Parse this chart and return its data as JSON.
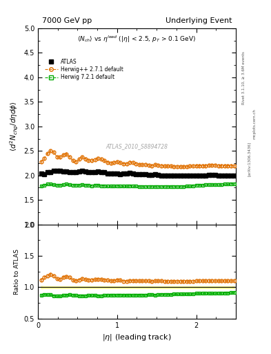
{
  "title_left": "7000 GeV pp",
  "title_right": "Underlying Event",
  "ylabel_main": "\\langle d^2 N_{chg}/d\\eta d\\phi \\rangle",
  "ylabel_ratio": "Ratio to ATLAS",
  "xlabel": "|\\eta| (leading track)",
  "watermark": "ATLAS_2010_S8894728",
  "xlim": [
    0,
    2.5
  ],
  "ylim_main": [
    1.0,
    5.0
  ],
  "ylim_ratio": [
    0.5,
    2.0
  ],
  "atlas_x": [
    0.04,
    0.08,
    0.12,
    0.16,
    0.2,
    0.24,
    0.28,
    0.32,
    0.36,
    0.4,
    0.44,
    0.48,
    0.52,
    0.56,
    0.6,
    0.64,
    0.68,
    0.72,
    0.76,
    0.8,
    0.84,
    0.88,
    0.92,
    0.96,
    1.0,
    1.04,
    1.08,
    1.12,
    1.16,
    1.2,
    1.24,
    1.28,
    1.32,
    1.36,
    1.4,
    1.44,
    1.48,
    1.52,
    1.56,
    1.6,
    1.64,
    1.68,
    1.72,
    1.76,
    1.8,
    1.84,
    1.88,
    1.92,
    1.96,
    2.0,
    2.04,
    2.08,
    2.12,
    2.16,
    2.2,
    2.24,
    2.28,
    2.32,
    2.36,
    2.4,
    2.44,
    2.48
  ],
  "atlas_y": [
    2.04,
    2.03,
    2.07,
    2.07,
    2.09,
    2.1,
    2.1,
    2.08,
    2.08,
    2.06,
    2.06,
    2.07,
    2.08,
    2.09,
    2.08,
    2.07,
    2.06,
    2.07,
    2.08,
    2.07,
    2.06,
    2.04,
    2.04,
    2.04,
    2.04,
    2.03,
    2.04,
    2.04,
    2.05,
    2.04,
    2.03,
    2.02,
    2.02,
    2.02,
    2.01,
    2.01,
    2.02,
    2.01,
    2.0,
    2.0,
    2.0,
    2.0,
    1.99,
    1.99,
    1.99,
    1.99,
    1.99,
    2.0,
    2.0,
    2.0,
    2.0,
    2.0,
    2.0,
    2.01,
    2.01,
    2.01,
    2.0,
    2.0,
    2.0,
    2.0,
    2.0,
    1.99
  ],
  "atlas_yerr": [
    0.04,
    0.03,
    0.03,
    0.03,
    0.03,
    0.03,
    0.03,
    0.03,
    0.03,
    0.03,
    0.03,
    0.03,
    0.03,
    0.03,
    0.03,
    0.03,
    0.03,
    0.03,
    0.03,
    0.03,
    0.03,
    0.03,
    0.03,
    0.03,
    0.03,
    0.03,
    0.03,
    0.03,
    0.03,
    0.03,
    0.03,
    0.03,
    0.03,
    0.03,
    0.03,
    0.03,
    0.03,
    0.03,
    0.03,
    0.03,
    0.03,
    0.03,
    0.03,
    0.03,
    0.03,
    0.03,
    0.03,
    0.03,
    0.03,
    0.03,
    0.03,
    0.03,
    0.03,
    0.03,
    0.03,
    0.03,
    0.03,
    0.03,
    0.03,
    0.03,
    0.03,
    0.03
  ],
  "herwig_x": [
    0.04,
    0.08,
    0.12,
    0.16,
    0.2,
    0.24,
    0.28,
    0.32,
    0.36,
    0.4,
    0.44,
    0.48,
    0.52,
    0.56,
    0.6,
    0.64,
    0.68,
    0.72,
    0.76,
    0.8,
    0.84,
    0.88,
    0.92,
    0.96,
    1.0,
    1.04,
    1.08,
    1.12,
    1.16,
    1.2,
    1.24,
    1.28,
    1.32,
    1.36,
    1.4,
    1.44,
    1.48,
    1.52,
    1.56,
    1.6,
    1.64,
    1.68,
    1.72,
    1.76,
    1.8,
    1.84,
    1.88,
    1.92,
    1.96,
    2.0,
    2.04,
    2.08,
    2.12,
    2.16,
    2.2,
    2.24,
    2.28,
    2.32,
    2.36,
    2.4,
    2.44,
    2.48
  ],
  "herwig_y": [
    2.28,
    2.35,
    2.45,
    2.5,
    2.47,
    2.38,
    2.37,
    2.42,
    2.44,
    2.38,
    2.3,
    2.28,
    2.33,
    2.38,
    2.34,
    2.31,
    2.3,
    2.32,
    2.35,
    2.33,
    2.3,
    2.27,
    2.25,
    2.26,
    2.28,
    2.26,
    2.24,
    2.24,
    2.27,
    2.26,
    2.24,
    2.22,
    2.22,
    2.22,
    2.21,
    2.2,
    2.22,
    2.21,
    2.2,
    2.19,
    2.19,
    2.19,
    2.18,
    2.18,
    2.18,
    2.18,
    2.18,
    2.19,
    2.19,
    2.2,
    2.2,
    2.2,
    2.2,
    2.21,
    2.21,
    2.21,
    2.2,
    2.2,
    2.2,
    2.2,
    2.2,
    2.19
  ],
  "herwig_yerr": [
    0.03,
    0.03,
    0.03,
    0.03,
    0.03,
    0.03,
    0.03,
    0.03,
    0.03,
    0.03,
    0.03,
    0.03,
    0.03,
    0.03,
    0.03,
    0.03,
    0.03,
    0.03,
    0.03,
    0.03,
    0.03,
    0.03,
    0.03,
    0.03,
    0.03,
    0.03,
    0.03,
    0.03,
    0.03,
    0.03,
    0.03,
    0.03,
    0.03,
    0.03,
    0.03,
    0.03,
    0.03,
    0.03,
    0.03,
    0.03,
    0.03,
    0.03,
    0.03,
    0.03,
    0.03,
    0.03,
    0.03,
    0.03,
    0.03,
    0.03,
    0.03,
    0.03,
    0.03,
    0.03,
    0.03,
    0.03,
    0.03,
    0.03,
    0.03,
    0.03,
    0.03,
    0.03
  ],
  "herwig7_x": [
    0.04,
    0.08,
    0.12,
    0.16,
    0.2,
    0.24,
    0.28,
    0.32,
    0.36,
    0.4,
    0.44,
    0.48,
    0.52,
    0.56,
    0.6,
    0.64,
    0.68,
    0.72,
    0.76,
    0.8,
    0.84,
    0.88,
    0.92,
    0.96,
    1.0,
    1.04,
    1.08,
    1.12,
    1.16,
    1.2,
    1.24,
    1.28,
    1.32,
    1.36,
    1.4,
    1.44,
    1.48,
    1.52,
    1.56,
    1.6,
    1.64,
    1.68,
    1.72,
    1.76,
    1.8,
    1.84,
    1.88,
    1.92,
    1.96,
    2.0,
    2.04,
    2.08,
    2.12,
    2.16,
    2.2,
    2.24,
    2.28,
    2.32,
    2.36,
    2.4,
    2.44,
    2.48
  ],
  "herwig7_y": [
    1.78,
    1.8,
    1.82,
    1.82,
    1.81,
    1.8,
    1.8,
    1.81,
    1.82,
    1.81,
    1.8,
    1.8,
    1.8,
    1.81,
    1.8,
    1.8,
    1.79,
    1.8,
    1.8,
    1.79,
    1.79,
    1.78,
    1.78,
    1.78,
    1.79,
    1.78,
    1.78,
    1.78,
    1.79,
    1.78,
    1.78,
    1.77,
    1.77,
    1.77,
    1.77,
    1.77,
    1.77,
    1.77,
    1.77,
    1.77,
    1.77,
    1.77,
    1.77,
    1.77,
    1.77,
    1.77,
    1.78,
    1.78,
    1.79,
    1.8,
    1.8,
    1.8,
    1.81,
    1.81,
    1.81,
    1.81,
    1.81,
    1.81,
    1.82,
    1.82,
    1.83,
    1.83
  ],
  "herwig7_yerr": [
    0.02,
    0.02,
    0.02,
    0.02,
    0.02,
    0.02,
    0.02,
    0.02,
    0.02,
    0.02,
    0.02,
    0.02,
    0.02,
    0.02,
    0.02,
    0.02,
    0.02,
    0.02,
    0.02,
    0.02,
    0.02,
    0.02,
    0.02,
    0.02,
    0.02,
    0.02,
    0.02,
    0.02,
    0.02,
    0.02,
    0.02,
    0.02,
    0.02,
    0.02,
    0.02,
    0.02,
    0.02,
    0.02,
    0.02,
    0.02,
    0.02,
    0.02,
    0.02,
    0.02,
    0.02,
    0.02,
    0.02,
    0.02,
    0.02,
    0.02,
    0.02,
    0.02,
    0.02,
    0.02,
    0.02,
    0.02,
    0.02,
    0.02,
    0.02,
    0.02,
    0.02,
    0.02
  ],
  "atlas_color": "#000000",
  "herwig_color": "#e07000",
  "herwig7_color": "#00aa00",
  "bg_color": "#ffffff",
  "atlas_band_color": "#ffff99",
  "herwig7_band_color": "#99ff99"
}
